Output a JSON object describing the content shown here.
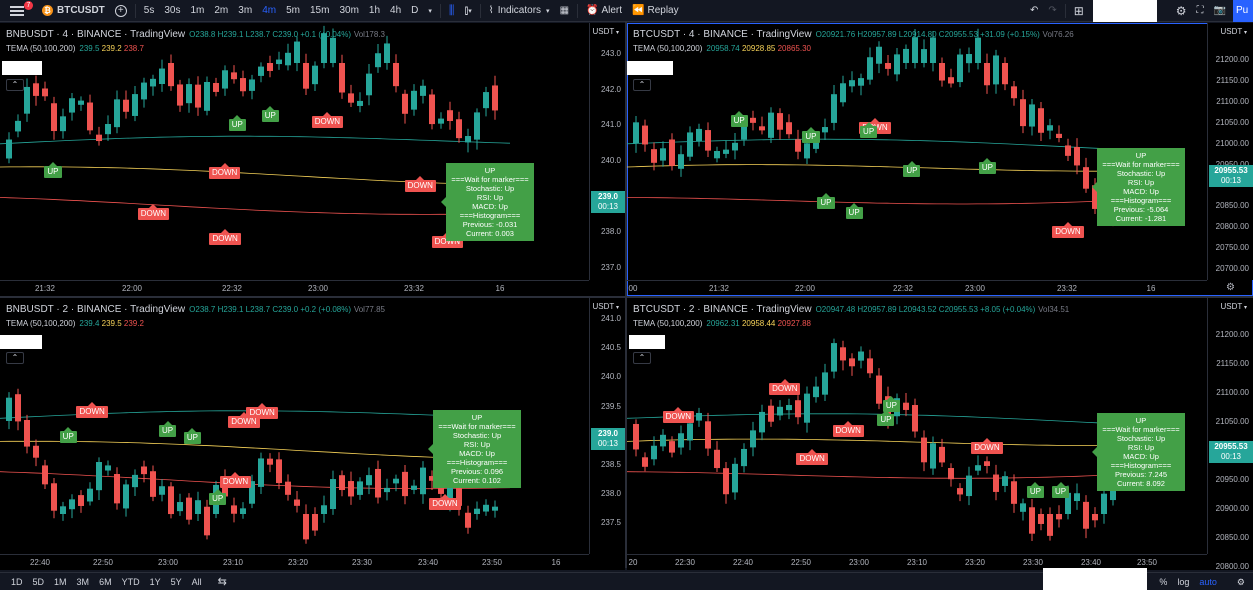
{
  "toolbar": {
    "notification_count": "7",
    "symbol": "BTCUSDT",
    "intervals": [
      "5s",
      "30s",
      "1m",
      "2m",
      "3m",
      "4m",
      "5m",
      "15m",
      "30m",
      "1h",
      "4h",
      "D"
    ],
    "active_interval": "4m",
    "indicators_label": "Indicators",
    "alert_label": "Alert",
    "replay_label": "Replay",
    "publish_label": "Pu"
  },
  "panes": [
    {
      "symbol": "BNBUSDT · 4 · BINANCE · TradingView",
      "ohlc": "O238.8 H239.1 L238.7 C239.0 +0.1 (+0.04%)",
      "vol": "Vol178.3",
      "tema_label": "TEMA (50,100,200)",
      "tema_values": [
        "239.5",
        "239.2",
        "238.7"
      ],
      "currency": "USDT",
      "y_ticks": [
        "243.0",
        "242.0",
        "241.0",
        "240.0",
        "239.0",
        "238.0",
        "237.0"
      ],
      "x_ticks": [
        "21:32",
        "22:00",
        "22:32",
        "23:00",
        "23:32",
        "16"
      ],
      "last_price": "239.0",
      "countdown": "00:13",
      "info": [
        "UP",
        "===Wait for marker===",
        "Stochastic: Up",
        "RSI: Up",
        "MACD: Up",
        "===Histogram===",
        "Previous: -0.031",
        "Current: 0.003"
      ]
    },
    {
      "symbol": "BTCUSDT · 4 · BINANCE · TradingView",
      "ohlc": "O20921.76 H20957.89 L20914.80 C20955.53 +31.09 (+0.15%)",
      "vol": "Vol76.26",
      "tema_label": "TEMA (50,100,200)",
      "tema_values": [
        "20958.74",
        "20928.85",
        "20865.30"
      ],
      "currency": "USDT",
      "y_ticks": [
        "21200.00",
        "21150.00",
        "21100.00",
        "21050.00",
        "21000.00",
        "20950.00",
        "20900.00",
        "20850.00",
        "20800.00",
        "20750.00",
        "20700.00"
      ],
      "x_ticks": [
        "00",
        "21:32",
        "22:00",
        "22:32",
        "23:00",
        "23:32",
        "16"
      ],
      "last_price": "20955.53",
      "countdown": "00:13",
      "info": [
        "UP",
        "===Wait for marker===",
        "Stochastic: Up",
        "RSI: Up",
        "MACD: Up",
        "===Histogram===",
        "Previous: -5.064",
        "Current: -1.281"
      ]
    },
    {
      "symbol": "BNBUSDT · 2 · BINANCE · TradingView",
      "ohlc": "O238.7 H239.1 L238.7 C239.0 +0.2 (+0.08%)",
      "vol": "Vol77.85",
      "tema_label": "TEMA (50,100,200)",
      "tema_values": [
        "239.4",
        "239.5",
        "239.2"
      ],
      "currency": "USDT",
      "y_ticks": [
        "241.0",
        "240.5",
        "240.0",
        "239.5",
        "239.0",
        "238.5",
        "238.0",
        "237.5"
      ],
      "x_ticks": [
        "22:40",
        "22:50",
        "23:00",
        "23:10",
        "23:20",
        "23:30",
        "23:40",
        "23:50",
        "16"
      ],
      "last_price": "239.0",
      "countdown": "00:13",
      "info": [
        "UP",
        "===Wait for marker===",
        "Stochastic: Up",
        "RSI: Up",
        "MACD: Up",
        "===Histogram===",
        "Previous: 0.096",
        "Current: 0.102"
      ]
    },
    {
      "symbol": "BTCUSDT · 2 · BINANCE · TradingView",
      "ohlc": "O20947.48 H20957.89 L20943.52 C20955.53 +8.05 (+0.04%)",
      "vol": "Vol34.51",
      "tema_label": "TEMA (50,100,200)",
      "tema_values": [
        "20962.31",
        "20958.44",
        "20927.88"
      ],
      "currency": "USDT",
      "y_ticks": [
        "21200.00",
        "21150.00",
        "21100.00",
        "21050.00",
        "21000.00",
        "20950.00",
        "20900.00",
        "20850.00",
        "20800.00"
      ],
      "x_ticks": [
        "20",
        "22:30",
        "22:40",
        "22:50",
        "23:00",
        "23:10",
        "23:20",
        "23:30",
        "23:40",
        "23:50"
      ],
      "last_price": "20955.53",
      "countdown": "00:13",
      "info": [
        "UP",
        "===Wait for marker===",
        "Stochastic: Up",
        "RSI: Up",
        "MACD: Up",
        "===Histogram===",
        "Previous: 7.245",
        "Current: 8.092"
      ]
    }
  ],
  "marker_labels": {
    "up": "UP",
    "down": "DOWN"
  },
  "bottombar": {
    "ranges": [
      "1D",
      "5D",
      "1M",
      "3M",
      "6M",
      "YTD",
      "1Y",
      "5Y",
      "All"
    ],
    "percent_label": "%",
    "log_label": "log",
    "auto_label": "auto"
  },
  "colors": {
    "up": "#26a69a",
    "down": "#ef5350",
    "marker_up": "#43a047",
    "accent": "#2962ff"
  }
}
